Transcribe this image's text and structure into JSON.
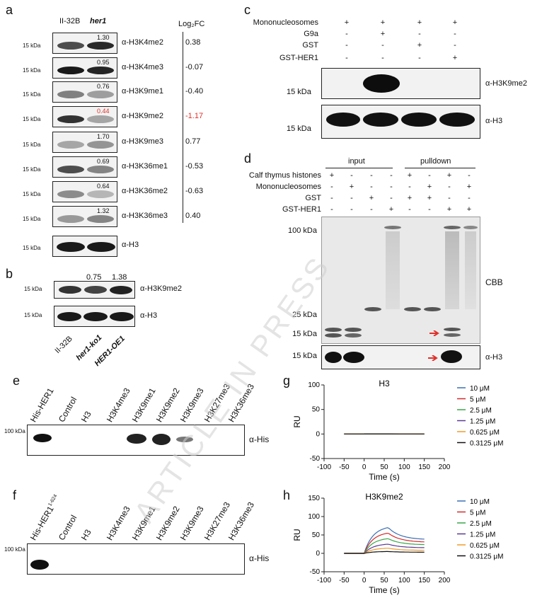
{
  "panel_labels": {
    "a": "a",
    "b": "b",
    "c": "c",
    "d": "d",
    "e": "e",
    "f": "f",
    "g": "g",
    "h": "h"
  },
  "panel_a": {
    "col1": "II-32B",
    "col2": "her1",
    "fc_header": "Log₂FC",
    "marker": "15 kDa",
    "rows": [
      {
        "ratio": "1.30",
        "antibody": "α-H3K4me2",
        "fc": "0.38",
        "highlight": false
      },
      {
        "ratio": "0.95",
        "antibody": "α-H3K4me3",
        "fc": "-0.07",
        "highlight": false
      },
      {
        "ratio": "0.76",
        "antibody": "α-H3K9me1",
        "fc": "-0.40",
        "highlight": false
      },
      {
        "ratio": "0.44",
        "antibody": "α-H3K9me2",
        "fc": "-1.17",
        "highlight": true
      },
      {
        "ratio": "1.70",
        "antibody": "α-H3K9me3",
        "fc": "0.77",
        "highlight": false
      },
      {
        "ratio": "0.69",
        "antibody": "α-H3K36me1",
        "fc": "-0.53",
        "highlight": false
      },
      {
        "ratio": "0.64",
        "antibody": "α-H3K36me2",
        "fc": "-0.63",
        "highlight": false
      },
      {
        "ratio": "1.32",
        "antibody": "α-H3K36me3",
        "fc": "0.40",
        "highlight": false
      }
    ],
    "h3": "α-H3",
    "highlight_color": "#e0302a"
  },
  "panel_b": {
    "ratios": [
      "0.75",
      "1.38"
    ],
    "antibody1": "α-H3K9me2",
    "antibody2": "α-H3",
    "marker": "15 kDa",
    "lanes": [
      "II-32B",
      "her1-ko1",
      "HER1-OE1"
    ]
  },
  "panel_c": {
    "rows": [
      {
        "label": "Mononucleosomes",
        "marks": [
          "+",
          "+",
          "+",
          "+"
        ]
      },
      {
        "label": "G9a",
        "marks": [
          "-",
          "+",
          "-",
          "-"
        ]
      },
      {
        "label": "GST",
        "marks": [
          "-",
          "-",
          "+",
          "-"
        ]
      },
      {
        "label": "GST-HER1",
        "marks": [
          "-",
          "-",
          "-",
          "+"
        ]
      }
    ],
    "marker": "15 kDa",
    "antibody1": "α-H3K9me2",
    "antibody2": "α-H3"
  },
  "panel_d": {
    "group1": "input",
    "group2": "pulldown",
    "rows": [
      {
        "label": "Calf thymus histones",
        "marks": [
          "+",
          "-",
          "-",
          "-",
          "+",
          "-",
          "+",
          "-"
        ]
      },
      {
        "label": "Mononucleosomes",
        "marks": [
          "-",
          "+",
          "-",
          "-",
          "-",
          "+",
          "-",
          "+"
        ]
      },
      {
        "label": "GST",
        "marks": [
          "-",
          "-",
          "+",
          "-",
          "+",
          "+",
          "-",
          "-"
        ]
      },
      {
        "label": "GST-HER1",
        "marks": [
          "-",
          "-",
          "-",
          "+",
          "-",
          "-",
          "+",
          "+"
        ]
      }
    ],
    "markers": [
      "100 kDa",
      "25 kDa",
      "15 kDa"
    ],
    "blot_marker": "15 kDa",
    "cbb": "CBB",
    "antibody": "α-H3",
    "arrow_color": "#e0302a"
  },
  "panel_e": {
    "lanes": [
      "His-HER1",
      "Control",
      "H3",
      "H3K4me3",
      "H3K9me1",
      "H3K9me2",
      "H3K9me3",
      "H3K27me3",
      "H3K36me3"
    ],
    "marker": "100 kDa",
    "antibody": "α-His"
  },
  "panel_f": {
    "lanes": [
      "His-HER1",
      "Control",
      "H3",
      "H3K4me3",
      "H3K9me1",
      "H3K9me2",
      "H3K9me3",
      "H3K27me3",
      "H3K36me3"
    ],
    "superscript": "1-624",
    "marker": "100 kDa",
    "antibody": "α-His"
  },
  "watermark": "ARTICLE IN PRESS",
  "chart_data": [
    {
      "type": "line",
      "title": "H3",
      "xlabel": "Time (s)",
      "ylabel": "RU",
      "xlim": [
        -100,
        200
      ],
      "ylim": [
        -50,
        100
      ],
      "xticks": [
        -100,
        -50,
        0,
        50,
        100,
        150,
        200
      ],
      "yticks": [
        -50,
        0,
        50,
        100
      ],
      "x": [
        -50,
        0,
        0.5,
        60,
        150
      ],
      "series": [
        {
          "name": "10 μM",
          "color": "#3b6fb6",
          "values": [
            0,
            0,
            0.5,
            0.5,
            0
          ]
        },
        {
          "name": "5 μM",
          "color": "#d42a2a",
          "values": [
            0,
            0,
            0.4,
            0.4,
            0
          ]
        },
        {
          "name": "2.5 μM",
          "color": "#3aa64a",
          "values": [
            0,
            0,
            0.3,
            0.3,
            0
          ]
        },
        {
          "name": "1.25 μM",
          "color": "#5b3a94",
          "values": [
            0,
            0,
            0.2,
            0.2,
            0
          ]
        },
        {
          "name": "0.625 μM",
          "color": "#f09a2a",
          "values": [
            0,
            0,
            0.1,
            0.1,
            0
          ]
        },
        {
          "name": "0.3125 μM",
          "color": "#111111",
          "values": [
            0,
            0,
            0,
            0,
            0
          ]
        }
      ]
    },
    {
      "type": "line",
      "title": "H3K9me2",
      "xlabel": "Time (s)",
      "ylabel": "RU",
      "xlim": [
        -100,
        200
      ],
      "ylim": [
        -50,
        150
      ],
      "xticks": [
        -100,
        -50,
        0,
        50,
        100,
        150,
        200
      ],
      "yticks": [
        -50,
        0,
        50,
        100,
        150
      ],
      "series": [
        {
          "name": "10 μM",
          "color": "#3b6fb6",
          "max": 70,
          "end": 37
        },
        {
          "name": "5 μM",
          "color": "#d42a2a",
          "max": 55,
          "end": 30
        },
        {
          "name": "2.5 μM",
          "color": "#3aa64a",
          "max": 40,
          "end": 23
        },
        {
          "name": "1.25 μM",
          "color": "#5b3a94",
          "max": 25,
          "end": 15
        },
        {
          "name": "0.625 μM",
          "color": "#f09a2a",
          "max": 14,
          "end": 8
        },
        {
          "name": "0.3125 μM",
          "color": "#111111",
          "max": 5,
          "end": 3
        }
      ]
    }
  ]
}
